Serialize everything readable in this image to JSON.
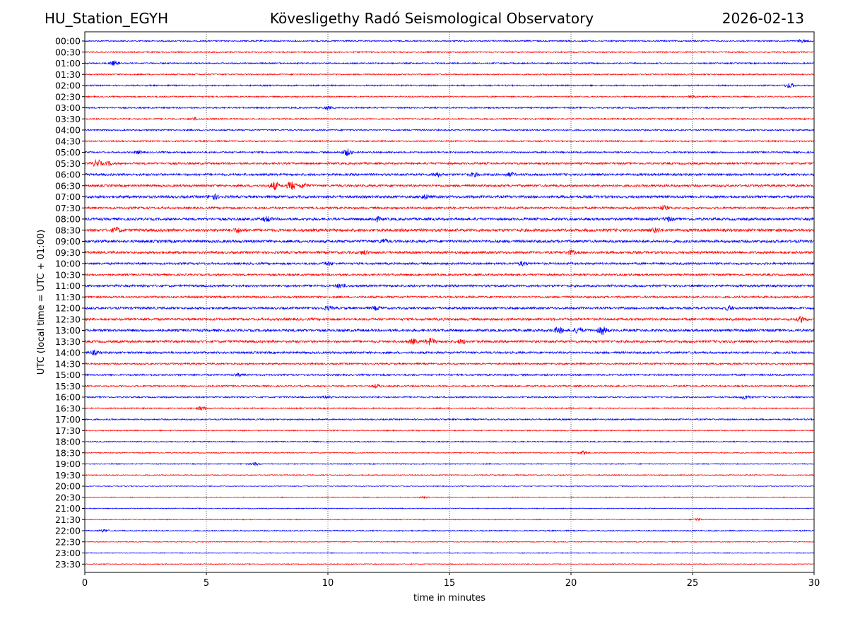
{
  "header": {
    "station": "HU_Station_EGYH",
    "observatory": "Kövesligethy Radó Seismological Observatory",
    "date": "2026-02-13"
  },
  "chart_data": {
    "type": "line",
    "title": "Kövesligethy Radó Seismological Observatory",
    "xlabel": "time in minutes",
    "ylabel": "UTC (local time = UTC + 01:00)",
    "xlim": [
      0,
      30
    ],
    "xticks": [
      0,
      5,
      10,
      15,
      20,
      25,
      30
    ],
    "grid": "vertical dotted at each x tick",
    "colors": {
      "even_rows": "#0000ff",
      "odd_rows": "#ff0000"
    },
    "rows": [
      {
        "label": "00:00",
        "noise": 1.0,
        "events": [
          [
            29.5,
            1.8
          ]
        ]
      },
      {
        "label": "00:30",
        "noise": 0.9,
        "events": []
      },
      {
        "label": "01:00",
        "noise": 1.0,
        "events": [
          [
            1.2,
            3.0
          ]
        ]
      },
      {
        "label": "01:30",
        "noise": 0.9,
        "events": []
      },
      {
        "label": "02:00",
        "noise": 1.0,
        "events": [
          [
            29.0,
            3.0
          ]
        ]
      },
      {
        "label": "02:30",
        "noise": 0.9,
        "events": [
          [
            25.0,
            1.8
          ]
        ]
      },
      {
        "label": "03:00",
        "noise": 1.0,
        "events": [
          [
            10.0,
            1.8
          ]
        ]
      },
      {
        "label": "03:30",
        "noise": 1.0,
        "events": [
          [
            4.5,
            1.6
          ]
        ]
      },
      {
        "label": "04:00",
        "noise": 1.0,
        "events": []
      },
      {
        "label": "04:30",
        "noise": 1.0,
        "events": []
      },
      {
        "label": "05:00",
        "noise": 1.2,
        "events": [
          [
            10.8,
            4.5
          ],
          [
            2.2,
            1.8
          ]
        ]
      },
      {
        "label": "05:30",
        "noise": 1.4,
        "events": [
          [
            0.5,
            5.0
          ],
          [
            1.0,
            2.0
          ]
        ]
      },
      {
        "label": "06:00",
        "noise": 1.6,
        "events": [
          [
            14.5,
            2.5
          ],
          [
            16.0,
            2.2
          ],
          [
            17.5,
            2.2
          ]
        ]
      },
      {
        "label": "06:30",
        "noise": 1.6,
        "events": [
          [
            7.8,
            5.0
          ],
          [
            8.5,
            5.5
          ],
          [
            9.0,
            3.0
          ]
        ]
      },
      {
        "label": "07:00",
        "noise": 1.8,
        "events": [
          [
            5.3,
            3.5
          ],
          [
            14.0,
            2.5
          ]
        ]
      },
      {
        "label": "07:30",
        "noise": 1.5,
        "events": [
          [
            23.8,
            2.8
          ]
        ]
      },
      {
        "label": "08:00",
        "noise": 1.8,
        "events": [
          [
            7.5,
            3.0
          ],
          [
            12.0,
            2.5
          ],
          [
            24.0,
            2.5
          ]
        ]
      },
      {
        "label": "08:30",
        "noise": 2.0,
        "events": [
          [
            1.3,
            3.0
          ],
          [
            6.3,
            2.5
          ],
          [
            23.5,
            2.5
          ]
        ]
      },
      {
        "label": "09:00",
        "noise": 1.9,
        "events": [
          [
            12.3,
            2.5
          ]
        ]
      },
      {
        "label": "09:30",
        "noise": 1.7,
        "events": [
          [
            11.5,
            2.5
          ],
          [
            20.0,
            2.5
          ]
        ]
      },
      {
        "label": "10:00",
        "noise": 1.5,
        "events": [
          [
            10.0,
            2.2
          ],
          [
            18.0,
            2.5
          ]
        ]
      },
      {
        "label": "10:30",
        "noise": 1.4,
        "events": []
      },
      {
        "label": "11:00",
        "noise": 1.6,
        "events": [
          [
            10.5,
            2.5
          ]
        ]
      },
      {
        "label": "11:30",
        "noise": 1.4,
        "events": []
      },
      {
        "label": "12:00",
        "noise": 1.6,
        "events": [
          [
            10.0,
            2.2
          ],
          [
            12.0,
            2.2
          ],
          [
            26.5,
            2.5
          ]
        ]
      },
      {
        "label": "12:30",
        "noise": 1.7,
        "events": [
          [
            29.5,
            3.5
          ]
        ]
      },
      {
        "label": "13:00",
        "noise": 1.8,
        "events": [
          [
            19.5,
            4.0
          ],
          [
            20.3,
            3.5
          ],
          [
            21.3,
            5.0
          ]
        ]
      },
      {
        "label": "13:30",
        "noise": 1.7,
        "events": [
          [
            13.5,
            3.0
          ],
          [
            14.2,
            4.0
          ],
          [
            15.5,
            2.5
          ]
        ]
      },
      {
        "label": "14:00",
        "noise": 1.5,
        "events": [
          [
            0.4,
            2.5
          ]
        ]
      },
      {
        "label": "14:30",
        "noise": 1.2,
        "events": []
      },
      {
        "label": "15:00",
        "noise": 1.2,
        "events": [
          [
            6.3,
            1.8
          ]
        ]
      },
      {
        "label": "15:30",
        "noise": 1.1,
        "events": [
          [
            12.0,
            1.8
          ]
        ]
      },
      {
        "label": "16:00",
        "noise": 1.0,
        "events": [
          [
            10.0,
            2.2
          ],
          [
            27.2,
            2.8
          ]
        ]
      },
      {
        "label": "16:30",
        "noise": 0.9,
        "events": [
          [
            4.8,
            2.5
          ]
        ]
      },
      {
        "label": "17:00",
        "noise": 1.0,
        "events": []
      },
      {
        "label": "17:30",
        "noise": 0.8,
        "events": []
      },
      {
        "label": "18:00",
        "noise": 0.8,
        "events": []
      },
      {
        "label": "18:30",
        "noise": 0.7,
        "events": [
          [
            20.5,
            2.5
          ]
        ]
      },
      {
        "label": "19:00",
        "noise": 0.7,
        "events": [
          [
            7.0,
            1.8
          ]
        ]
      },
      {
        "label": "19:30",
        "noise": 0.7,
        "events": []
      },
      {
        "label": "20:00",
        "noise": 0.6,
        "events": []
      },
      {
        "label": "20:30",
        "noise": 0.6,
        "events": [
          [
            14.0,
            1.4
          ]
        ]
      },
      {
        "label": "21:00",
        "noise": 0.6,
        "events": []
      },
      {
        "label": "21:30",
        "noise": 0.6,
        "events": [
          [
            25.2,
            1.8
          ]
        ]
      },
      {
        "label": "22:00",
        "noise": 0.8,
        "events": [
          [
            0.8,
            1.8
          ]
        ]
      },
      {
        "label": "22:30",
        "noise": 0.6,
        "events": []
      },
      {
        "label": "23:00",
        "noise": 0.6,
        "events": []
      },
      {
        "label": "23:30",
        "noise": 0.6,
        "events": []
      }
    ]
  }
}
